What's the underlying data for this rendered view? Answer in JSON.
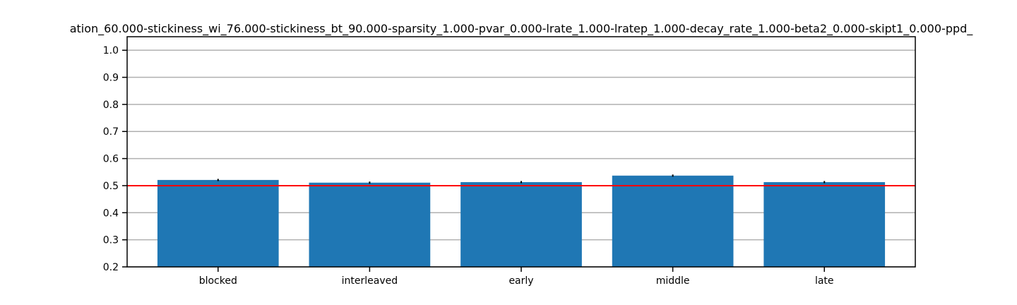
{
  "chart_data": {
    "type": "bar",
    "title": "ation_60.000-stickiness_wi_76.000-stickiness_bt_90.000-sparsity_1.000-pvar_0.000-lrate_1.000-lratep_1.000-decay_rate_1.000-beta2_0.000-skipt1_0.000-ppd_",
    "xlabel": "",
    "ylabel": "",
    "categories": [
      "blocked",
      "interleaved",
      "early",
      "middle",
      "late"
    ],
    "values": [
      0.521,
      0.511,
      0.513,
      0.537,
      0.513
    ],
    "errors": [
      0.004,
      0.004,
      0.004,
      0.004,
      0.004
    ],
    "ylim": [
      0.2,
      1.05
    ],
    "yticks": [
      "0.2",
      "0.3",
      "0.4",
      "0.5",
      "0.6",
      "0.7",
      "0.8",
      "0.9",
      "1.0"
    ],
    "reference_line": {
      "y": 0.5,
      "color": "#ff0000"
    },
    "bar_color": "#1f77b4",
    "grid": "horizontal",
    "grid_color": "#b0b0b0"
  }
}
